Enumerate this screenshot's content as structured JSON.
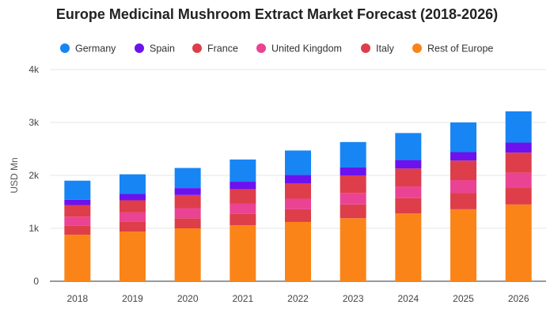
{
  "chart_data": {
    "type": "bar",
    "stacked": true,
    "title": "Europe Medicinal Mushroom Extract Market Forecast (2018-2026)",
    "xlabel": "",
    "ylabel": "USD Mn",
    "ylim": [
      0,
      4000
    ],
    "yticks": [
      0,
      1000,
      2000,
      3000,
      4000
    ],
    "ytick_labels": [
      "0",
      "1k",
      "2k",
      "3k",
      "4k"
    ],
    "grid": true,
    "legend_position": "top",
    "categories": [
      "2018",
      "2019",
      "2020",
      "2021",
      "2022",
      "2023",
      "2024",
      "2025",
      "2026"
    ],
    "series": [
      {
        "name": "Rest of Europe",
        "color": "#fb8418",
        "values": [
          880,
          940,
          1000,
          1060,
          1120,
          1190,
          1280,
          1360,
          1450
        ]
      },
      {
        "name": "Italy",
        "color": "#dd3e4a",
        "values": [
          170,
          180,
          190,
          210,
          240,
          260,
          290,
          310,
          320
        ]
      },
      {
        "name": "United Kingdom",
        "color": "#eb4393",
        "values": [
          170,
          180,
          190,
          200,
          200,
          220,
          220,
          240,
          280
        ]
      },
      {
        "name": "France",
        "color": "#dd3e4a",
        "values": [
          220,
          230,
          250,
          270,
          290,
          330,
          340,
          370,
          380
        ]
      },
      {
        "name": "Spain",
        "color": "#6b12ee",
        "values": [
          100,
          120,
          130,
          140,
          160,
          150,
          160,
          160,
          190
        ]
      },
      {
        "name": "Germany",
        "color": "#1785f4",
        "values": [
          360,
          370,
          380,
          420,
          460,
          480,
          510,
          560,
          590
        ]
      }
    ],
    "legend_order": [
      "Germany",
      "Spain",
      "France",
      "United Kingdom",
      "Italy",
      "Rest of Europe"
    ]
  }
}
